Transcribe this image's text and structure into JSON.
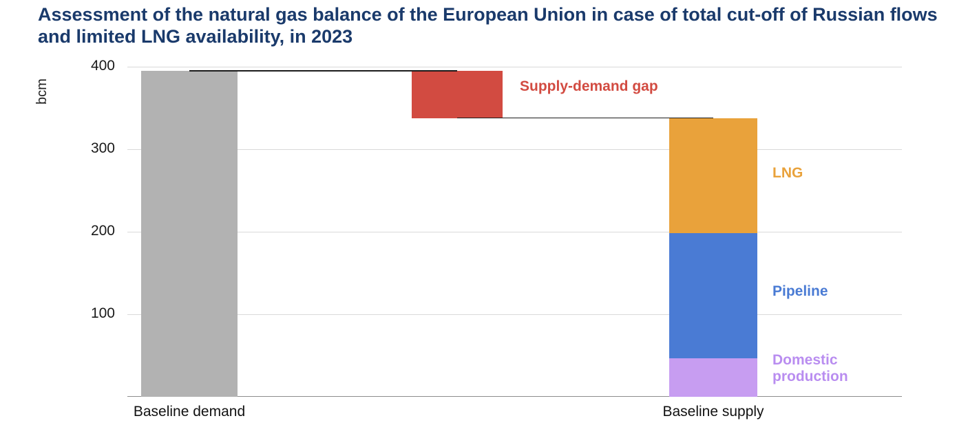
{
  "title": "Assessment of the natural gas balance of the European Union in case of total cut-off of Russian flows and limited LNG availability, in 2023",
  "colors": {
    "title": "#1a3a6b",
    "demand_bar": "#b2b2b2",
    "gap": "#d24b41",
    "lng": "#e9a23b",
    "pipeline": "#4a7bd4",
    "domestic": "#c79df1",
    "domestic_label": "#b98df0",
    "gridline": "#d9d9d9",
    "axis": "#8c8c8c",
    "connector": "#1a1a1a",
    "tick_text": "#1a1a1a",
    "xlabel_text": "#111111"
  },
  "chart_data": {
    "type": "bar",
    "subtype": "waterfall",
    "title": "Assessment of the natural gas balance of the European Union in case of total cut-off of Russian flows and limited LNG availability, in 2023",
    "unit": "bcm",
    "ylabel": "bcm",
    "xlabel": "",
    "ylim": [
      0,
      406
    ],
    "yticks": [
      100,
      200,
      300,
      400
    ],
    "grid": true,
    "legend_position": "right-annotations",
    "categories": [
      "Baseline demand",
      "Supply-demand gap",
      "Baseline supply"
    ],
    "bars": [
      {
        "name": "baseline-demand",
        "xlabel": "Baseline demand",
        "from": 0,
        "to": 395,
        "value": 395,
        "color_key": "demand_bar"
      },
      {
        "name": "supply-demand-gap",
        "xlabel": "",
        "from": 338,
        "to": 395,
        "value": 57,
        "color_key": "gap"
      },
      {
        "name": "baseline-supply",
        "xlabel": "Baseline supply",
        "total": 338,
        "segments": [
          {
            "name": "domestic-production",
            "label": "Domestic production",
            "from": 0,
            "to": 47,
            "value": 47,
            "color_key": "domestic"
          },
          {
            "name": "pipeline",
            "label": "Pipeline",
            "from": 47,
            "to": 198,
            "value": 151,
            "color_key": "pipeline"
          },
          {
            "name": "lng",
            "label": "LNG",
            "from": 198,
            "to": 338,
            "value": 140,
            "color_key": "lng"
          }
        ]
      }
    ],
    "connectors": [
      {
        "at": 395,
        "from_bar": 0,
        "to_bar": 1
      },
      {
        "at": 338,
        "from_bar": 1,
        "to_bar": 2
      }
    ],
    "annotations": [
      {
        "text": "Supply-demand gap",
        "color_key": "gap"
      },
      {
        "text": "LNG",
        "color_key": "lng"
      },
      {
        "text": "Pipeline",
        "color_key": "pipeline"
      },
      {
        "text": "Domestic production",
        "color_key": "domestic_label"
      }
    ]
  }
}
